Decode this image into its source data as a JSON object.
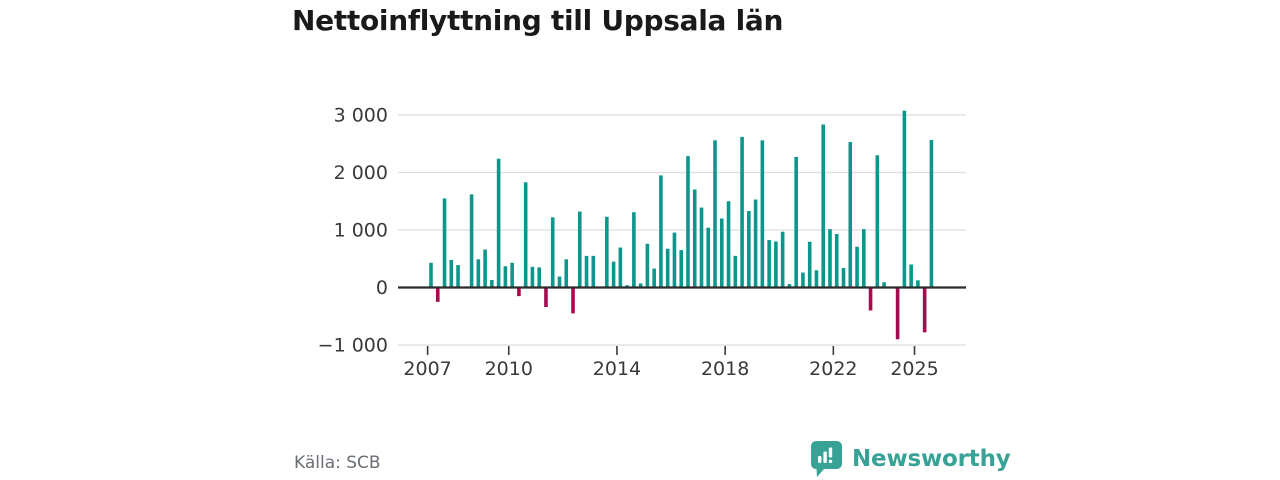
{
  "title": "Nettoinflyttning till Uppsala län",
  "source": "Källa: SCB",
  "brand": {
    "name": "Newsworthy",
    "color": "#38a296"
  },
  "colors": {
    "positive": "#0d978c",
    "negative": "#a50b4e",
    "grid": "#dedede",
    "zero_axis": "#2b2b2b",
    "tick_text": "#3a3a3a",
    "muted_text": "#6a6e75",
    "background": "#ffffff"
  },
  "chart_data": {
    "type": "bar",
    "title": "Nettoinflyttning till Uppsala län",
    "frequency": "quarterly",
    "x_start": "2007-Q1",
    "x_end": "2025-Q3",
    "grid": true,
    "ylim": [
      -1000,
      3200
    ],
    "x_ticks": [
      {
        "label": "2007",
        "year": 2007
      },
      {
        "label": "2010",
        "year": 2010
      },
      {
        "label": "2014",
        "year": 2014
      },
      {
        "label": "2018",
        "year": 2018
      },
      {
        "label": "2022",
        "year": 2022
      },
      {
        "label": "2025",
        "year": 2025
      }
    ],
    "y_ticks": [
      {
        "label": "3 000",
        "value": 3000
      },
      {
        "label": "2 000",
        "value": 2000
      },
      {
        "label": "1 000",
        "value": 1000
      },
      {
        "label": "0",
        "value": 0
      },
      {
        "label": "−1 000",
        "value": -1000
      }
    ],
    "values": [
      430,
      -250,
      1550,
      480,
      390,
      0,
      1620,
      490,
      660,
      130,
      2240,
      370,
      430,
      -150,
      1830,
      360,
      350,
      -340,
      1220,
      190,
      490,
      -450,
      1320,
      550,
      550,
      0,
      1230,
      450,
      695,
      40,
      1310,
      70,
      760,
      330,
      1950,
      675,
      955,
      650,
      2285,
      1705,
      1390,
      1040,
      2560,
      1200,
      1500,
      550,
      2620,
      1330,
      1530,
      2560,
      825,
      800,
      970,
      60,
      2270,
      260,
      795,
      300,
      2835,
      1015,
      930,
      340,
      2530,
      710,
      1015,
      -400,
      2300,
      90,
      0,
      -900,
      3075,
      400,
      125,
      -780,
      2565
    ]
  }
}
